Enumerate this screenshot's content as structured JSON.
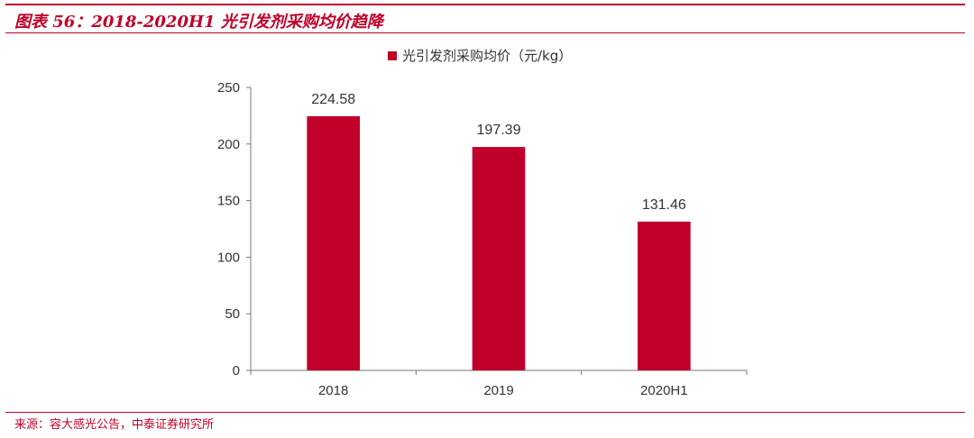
{
  "title": "图表 56：2018-2020H1 光引发剂采购均价趋降",
  "source": "来源：容大感光公告，中泰证券研究所",
  "colors": {
    "accent": "#c0002a",
    "bar": "#c0002a",
    "axis": "#777777",
    "text": "#333333"
  },
  "chart_data": {
    "type": "bar",
    "categories": [
      "2018",
      "2019",
      "2020H1"
    ],
    "series": [
      {
        "name": "光引发剂采购均价（元/kg）",
        "values": [
          224.58,
          197.39,
          131.46
        ]
      }
    ],
    "data_labels": [
      "224.58",
      "197.39",
      "131.46"
    ],
    "ylim": [
      0,
      250
    ],
    "yticks": [
      0,
      50,
      100,
      150,
      200,
      250
    ],
    "ytick_labels": [
      "0",
      "50",
      "100",
      "150",
      "200",
      "250"
    ],
    "legend_position": "top-center",
    "grid": false
  }
}
